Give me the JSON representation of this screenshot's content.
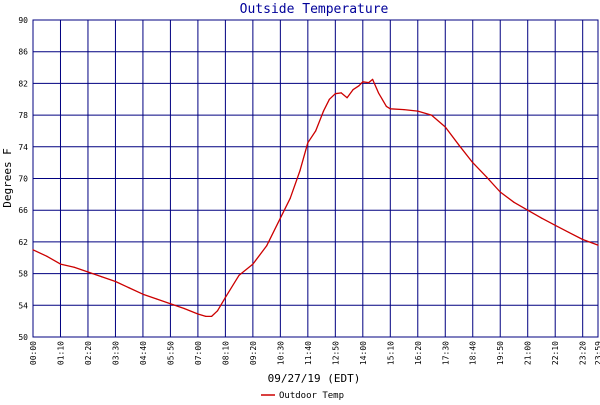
{
  "chart_data": {
    "type": "line",
    "title": "Outside Temperature",
    "xlabel": "09/27/19 (EDT)",
    "ylabel": "Degrees F",
    "ylim": [
      50,
      90
    ],
    "y_ticks": [
      "50",
      "54",
      "58",
      "62",
      "66",
      "70",
      "74",
      "78",
      "82",
      "86",
      "90"
    ],
    "x_ticks": [
      "00:00",
      "01:10",
      "02:20",
      "03:30",
      "04:40",
      "05:50",
      "07:00",
      "08:10",
      "09:20",
      "10:30",
      "11:40",
      "12:50",
      "14:00",
      "15:10",
      "16:20",
      "17:30",
      "18:40",
      "19:50",
      "21:00",
      "22:10",
      "23:20",
      "23:59"
    ],
    "grid": true,
    "legend_position": "bottom-center",
    "colors": {
      "grid": "#000080",
      "title": "#000099",
      "line": "#cc0000"
    },
    "series": [
      {
        "name": "Outdoor Temp",
        "x": [
          "00:00",
          "00:35",
          "01:10",
          "01:45",
          "02:20",
          "02:55",
          "03:30",
          "04:05",
          "04:40",
          "05:15",
          "05:50",
          "06:25",
          "07:00",
          "07:20",
          "07:35",
          "07:50",
          "08:10",
          "08:45",
          "09:20",
          "09:55",
          "10:30",
          "10:55",
          "11:20",
          "11:40",
          "12:00",
          "12:20",
          "12:35",
          "12:50",
          "13:05",
          "13:20",
          "13:35",
          "13:50",
          "14:00",
          "14:15",
          "14:25",
          "14:40",
          "15:00",
          "15:10",
          "15:45",
          "16:20",
          "16:55",
          "17:30",
          "18:05",
          "18:40",
          "19:15",
          "19:50",
          "20:25",
          "21:00",
          "21:35",
          "22:10",
          "22:45",
          "23:20",
          "23:59"
        ],
        "values": [
          61.0,
          60.2,
          59.2,
          58.8,
          58.2,
          57.6,
          57.0,
          56.2,
          55.4,
          54.8,
          54.2,
          53.6,
          52.9,
          52.6,
          52.6,
          53.3,
          55.0,
          57.8,
          59.2,
          61.5,
          65.0,
          67.5,
          71.0,
          74.5,
          76.0,
          78.5,
          80.0,
          80.7,
          80.8,
          80.2,
          81.2,
          81.7,
          82.2,
          82.1,
          82.5,
          80.8,
          79.1,
          78.8,
          78.7,
          78.5,
          78.0,
          76.5,
          74.2,
          72.0,
          70.2,
          68.3,
          67.0,
          66.0,
          65.0,
          64.1,
          63.2,
          62.3,
          61.6
        ]
      }
    ]
  }
}
